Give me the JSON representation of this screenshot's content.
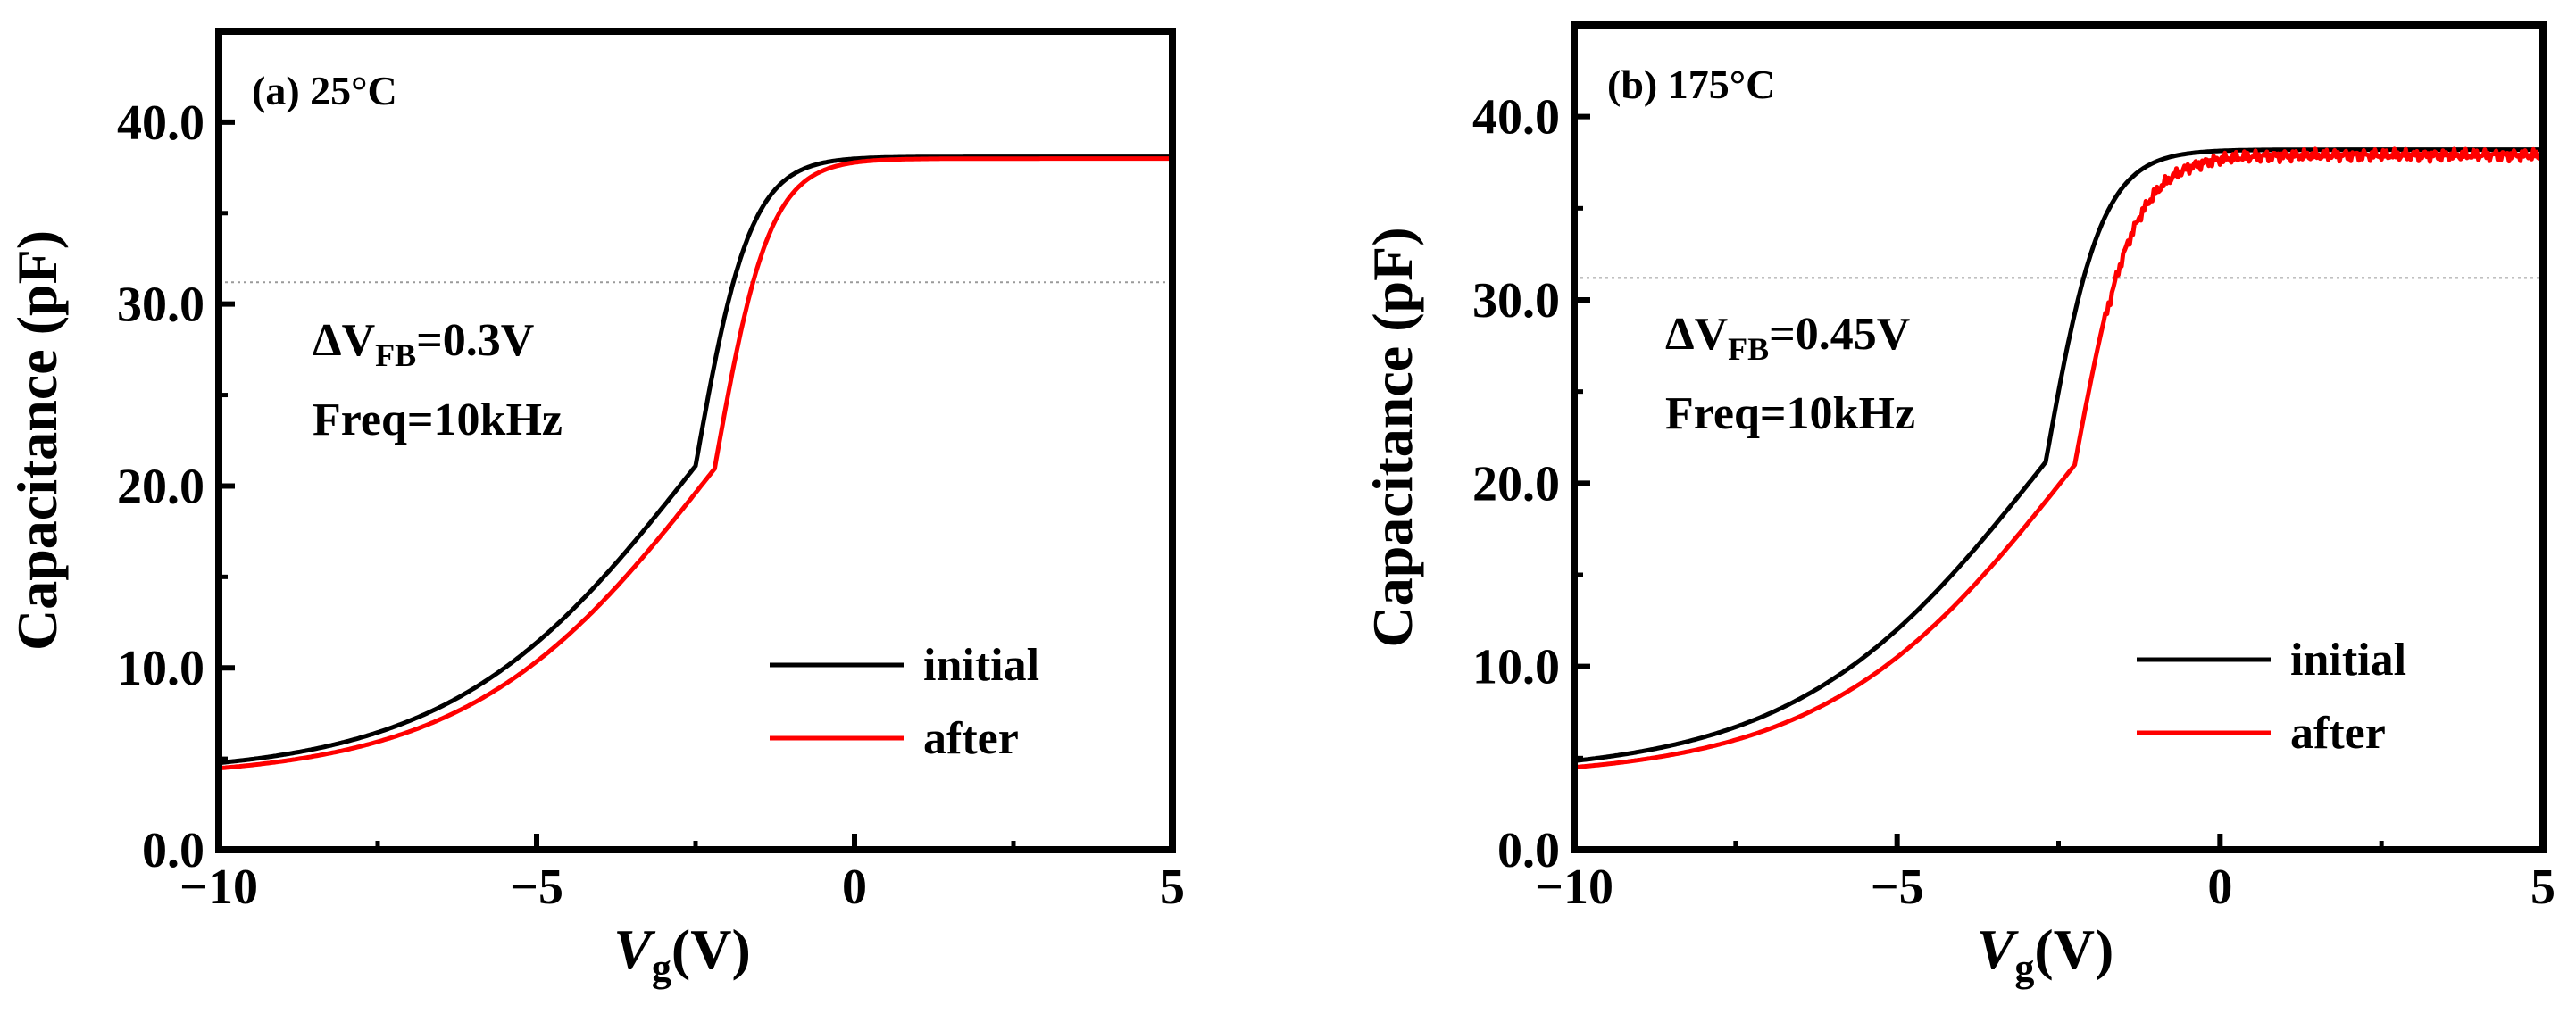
{
  "chart_data": [
    {
      "type": "line",
      "panel_label": "(a) 25°C",
      "annotation": {
        "delta_prefix": "ΔV",
        "delta_sub": "FB",
        "delta_value": "=0.3V",
        "freq": "Freq=10kHz"
      },
      "xlabel": {
        "italic": "V",
        "sub": "g",
        "unit": "(V)"
      },
      "ylabel": "Capacitance (pF)",
      "xlim": [
        -10,
        5
      ],
      "ylim": [
        0,
        45
      ],
      "xticks": [
        -10,
        -5,
        0,
        5
      ],
      "xtick_labels": [
        "−10",
        "−5",
        "0",
        "5"
      ],
      "yticks": [
        0,
        10,
        20,
        30,
        40
      ],
      "ytick_labels": [
        "0.0",
        "10.0",
        "20.0",
        "30.0",
        "40.0"
      ],
      "reference_line_y": 31.2,
      "grid": false,
      "legend_position": "lower-right",
      "series": [
        {
          "name": "initial",
          "color": "#000000",
          "model": {
            "vfb": -2.5,
            "cmax": 38.1,
            "cmin": 4.1,
            "k_left": 0.52,
            "k_right": 2.3
          }
        },
        {
          "name": "after",
          "color": "#ff0000",
          "model": {
            "vfb": -2.2,
            "cmax": 38.0,
            "cmin": 3.9,
            "k_left": 0.52,
            "k_right": 2.3
          }
        }
      ]
    },
    {
      "type": "line",
      "panel_label": "(b) 175°C",
      "annotation": {
        "delta_prefix": "ΔV",
        "delta_sub": "FB",
        "delta_value": "=0.45V",
        "freq": "Freq=10kHz"
      },
      "xlabel": {
        "italic": "V",
        "sub": "g",
        "unit": "(V)"
      },
      "ylabel": "Capacitance (pF)",
      "xlim": [
        -10,
        5
      ],
      "ylim": [
        0,
        45
      ],
      "xticks": [
        -10,
        -5,
        0,
        5
      ],
      "xtick_labels": [
        "−10",
        "−5",
        "0",
        "5"
      ],
      "yticks": [
        0,
        10,
        20,
        30,
        40
      ],
      "ytick_labels": [
        "0.0",
        "10.0",
        "20.0",
        "30.0",
        "40.0"
      ],
      "reference_line_y": 31.2,
      "grid": false,
      "legend_position": "lower-right",
      "series": [
        {
          "name": "initial",
          "color": "#000000",
          "model": {
            "vfb": -2.7,
            "cmax": 38.2,
            "cmin": 4.1,
            "k_left": 0.52,
            "k_right": 2.3
          }
        },
        {
          "name": "after",
          "color": "#ff0000",
          "model": {
            "vfb": -2.25,
            "cmax": 38.1,
            "cmin": 3.9,
            "k_left": 0.52,
            "k_right": 2.2,
            "noisy": true
          }
        }
      ]
    }
  ]
}
